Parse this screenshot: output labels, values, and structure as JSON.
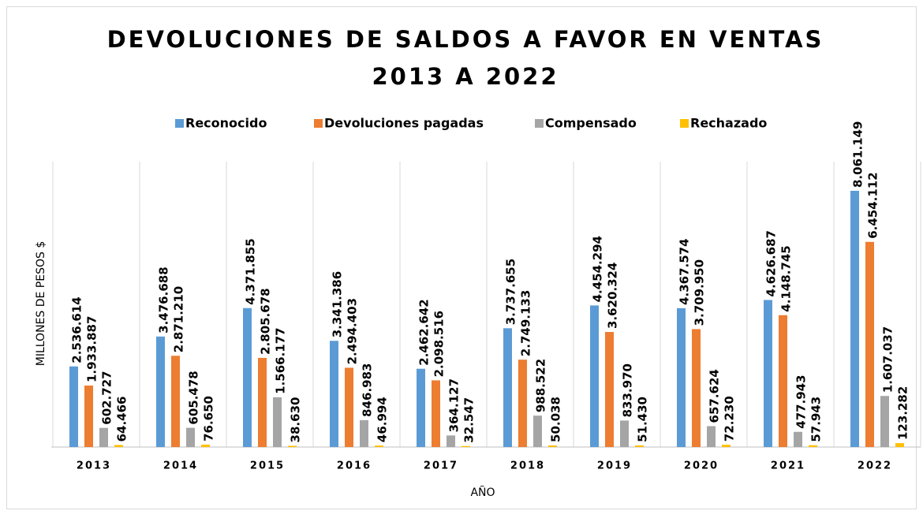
{
  "chart_data": {
    "type": "bar",
    "title": "DEVOLUCIONES DE SALDOS A FAVOR EN VENTAS",
    "subtitle": "2013 A 2022",
    "y_label": "MILLONES DE PESOS $",
    "x_label": "AÑO",
    "categories": [
      "2013",
      "2014",
      "2015",
      "2016",
      "2017",
      "2018",
      "2019",
      "2020",
      "2021",
      "2022"
    ],
    "series": [
      {
        "name": "Reconocido",
        "color": "#5b9bd5",
        "values": [
          2536614,
          3476688,
          4371855,
          3341386,
          2462642,
          3737655,
          4454294,
          4367574,
          4626687,
          8061149
        ],
        "value_labels": [
          "2.536.614",
          "3.476.688",
          "4.371.855",
          "3.341.386",
          "2.462.642",
          "3.737.655",
          "4.454.294",
          "4.367.574",
          "4.626.687",
          "8.061.149"
        ]
      },
      {
        "name": "Devoluciones pagadas",
        "color": "#ed7d31",
        "values": [
          1933887,
          2871210,
          2805678,
          2494403,
          2098516,
          2749133,
          3620324,
          3709950,
          4148745,
          6454112
        ],
        "value_labels": [
          "1.933.887",
          "2.871.210",
          "2.805.678",
          "2.494.403",
          "2.098.516",
          "2.749.133",
          "3.620.324",
          "3.709.950",
          "4.148.745",
          "6.454.112"
        ]
      },
      {
        "name": "Compensado",
        "color": "#a5a5a5",
        "values": [
          602727,
          605478,
          1566177,
          846983,
          364127,
          988522,
          833970,
          657624,
          477943,
          1607037
        ],
        "value_labels": [
          "602.727",
          "605.478",
          "1.566.177",
          "846.983",
          "364.127",
          "988.522",
          "833.970",
          "657.624",
          "477.943",
          "1.607.037"
        ]
      },
      {
        "name": "Rechazado",
        "color": "#ffc000",
        "values": [
          64466,
          76650,
          38630,
          46994,
          32547,
          50038,
          51430,
          72230,
          57943,
          123282
        ],
        "value_labels": [
          "64.466",
          "76.650",
          "38.630",
          "46.994",
          "32.547",
          "50.038",
          "51.430",
          "72.230",
          "57.943",
          "123.282"
        ]
      }
    ]
  }
}
